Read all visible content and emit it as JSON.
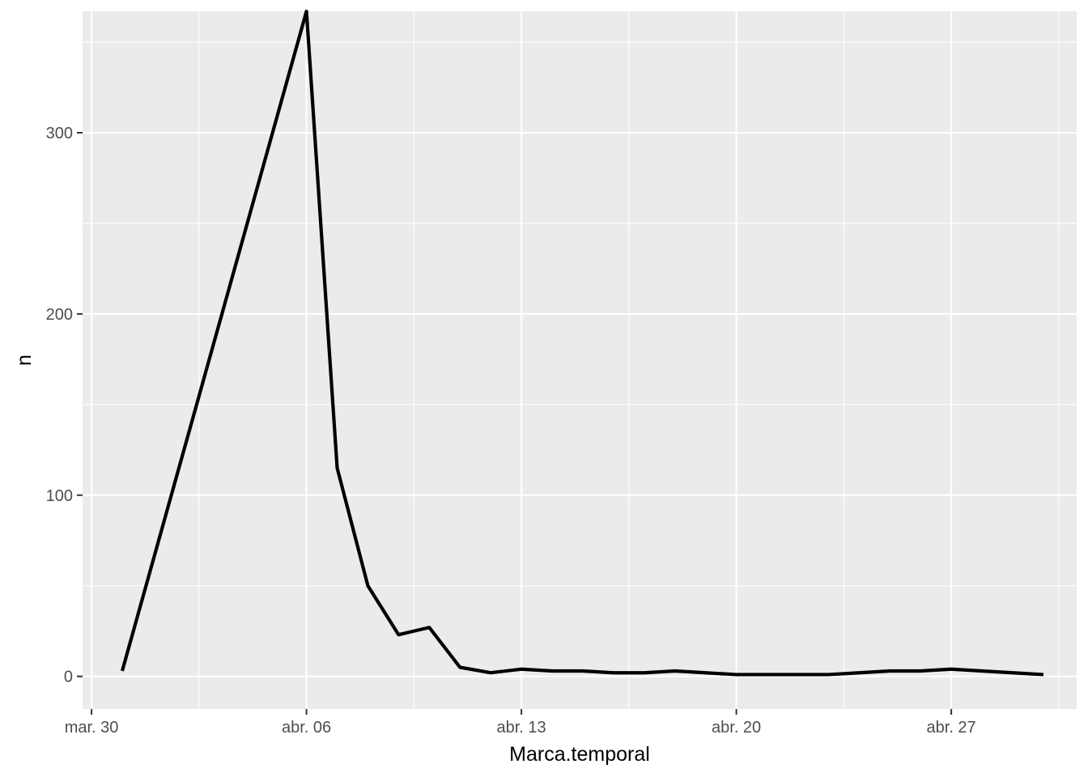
{
  "chart_data": {
    "type": "line",
    "title": "",
    "xlabel": "Marca.temporal",
    "ylabel": "n",
    "x_type": "date",
    "x_ticks": [
      {
        "date": "2020-03-30",
        "label": "mar. 30"
      },
      {
        "date": "2020-04-06",
        "label": "abr. 06"
      },
      {
        "date": "2020-04-13",
        "label": "abr. 13"
      },
      {
        "date": "2020-04-20",
        "label": "abr. 20"
      },
      {
        "date": "2020-04-27",
        "label": "abr. 27"
      }
    ],
    "y_ticks": [
      0,
      100,
      200,
      300
    ],
    "xlim": [
      "2020-03-29T17:00",
      "2020-05-01T02:00"
    ],
    "ylim": [
      -18,
      367
    ],
    "grid": true,
    "legend": "none",
    "colors": {
      "panel_background": "#ebebeb",
      "grid_major": "#ffffff",
      "line": "#000000",
      "axis_text": "#4d4d4d",
      "axis_title": "#000000"
    },
    "series": [
      {
        "name": "",
        "points": [
          {
            "x": "2020-03-31",
            "y": 3
          },
          {
            "x": "2020-04-06",
            "y": 367
          },
          {
            "x": "2020-04-07",
            "y": 115
          },
          {
            "x": "2020-04-08",
            "y": 50
          },
          {
            "x": "2020-04-09",
            "y": 23
          },
          {
            "x": "2020-04-10",
            "y": 27
          },
          {
            "x": "2020-04-11",
            "y": 5
          },
          {
            "x": "2020-04-12",
            "y": 2
          },
          {
            "x": "2020-04-13",
            "y": 4
          },
          {
            "x": "2020-04-14",
            "y": 3
          },
          {
            "x": "2020-04-15",
            "y": 3
          },
          {
            "x": "2020-04-16",
            "y": 2
          },
          {
            "x": "2020-04-17",
            "y": 2
          },
          {
            "x": "2020-04-18",
            "y": 3
          },
          {
            "x": "2020-04-19",
            "y": 2
          },
          {
            "x": "2020-04-20",
            "y": 1
          },
          {
            "x": "2020-04-21",
            "y": 1
          },
          {
            "x": "2020-04-22",
            "y": 1
          },
          {
            "x": "2020-04-23",
            "y": 1
          },
          {
            "x": "2020-04-24",
            "y": 2
          },
          {
            "x": "2020-04-25",
            "y": 3
          },
          {
            "x": "2020-04-26",
            "y": 3
          },
          {
            "x": "2020-04-27",
            "y": 4
          },
          {
            "x": "2020-04-28",
            "y": 3
          },
          {
            "x": "2020-04-29",
            "y": 2
          },
          {
            "x": "2020-04-30",
            "y": 1
          }
        ]
      }
    ]
  }
}
